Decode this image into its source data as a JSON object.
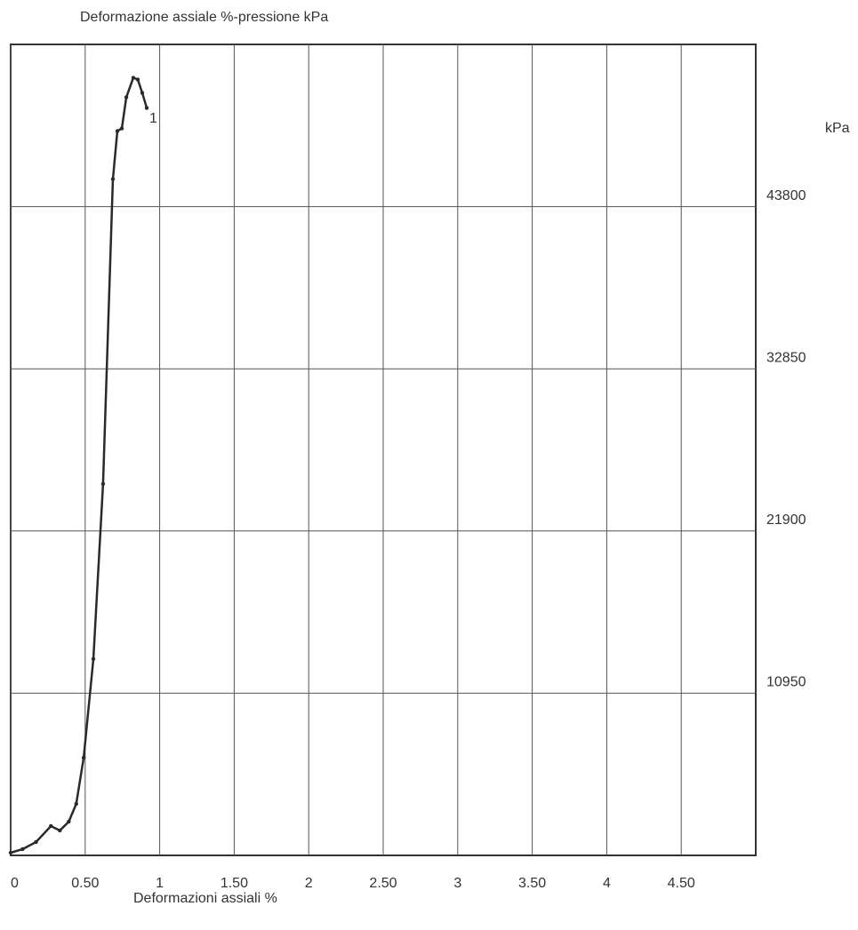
{
  "chart_data": {
    "type": "line",
    "title": "Deformazione assiale  %-pressione  kPa",
    "x_label": "Deformazioni assiali  %",
    "y_label": "kPa",
    "xlim": [
      0,
      5
    ],
    "xticks": [
      0,
      {
        "value": 0.5,
        "label": "0.50"
      },
      1,
      {
        "value": 1.5,
        "label": "1.50"
      },
      2,
      {
        "value": 2.5,
        "label": "2.50"
      },
      3,
      {
        "value": 3.5,
        "label": "3.50"
      },
      4,
      {
        "value": 4.5,
        "label": "4.50"
      }
    ],
    "ylim": [
      0,
      54750
    ],
    "yticks": [
      10950,
      21900,
      32850,
      43800
    ],
    "grid": true,
    "series": [
      {
        "name": "1",
        "color": "#2a2a2a",
        "x": [
          0,
          0.08,
          0.17,
          0.27,
          0.33,
          0.39,
          0.44,
          0.49,
          0.555,
          0.62,
          0.686,
          0.716,
          0.746,
          0.776,
          0.823,
          0.853,
          0.883,
          0.913
        ],
        "values": [
          180,
          420,
          900,
          1980,
          1680,
          2280,
          3480,
          6600,
          13260,
          25080,
          45660,
          48900,
          49080,
          51180,
          52500,
          52380,
          51480,
          50460
        ]
      }
    ]
  }
}
